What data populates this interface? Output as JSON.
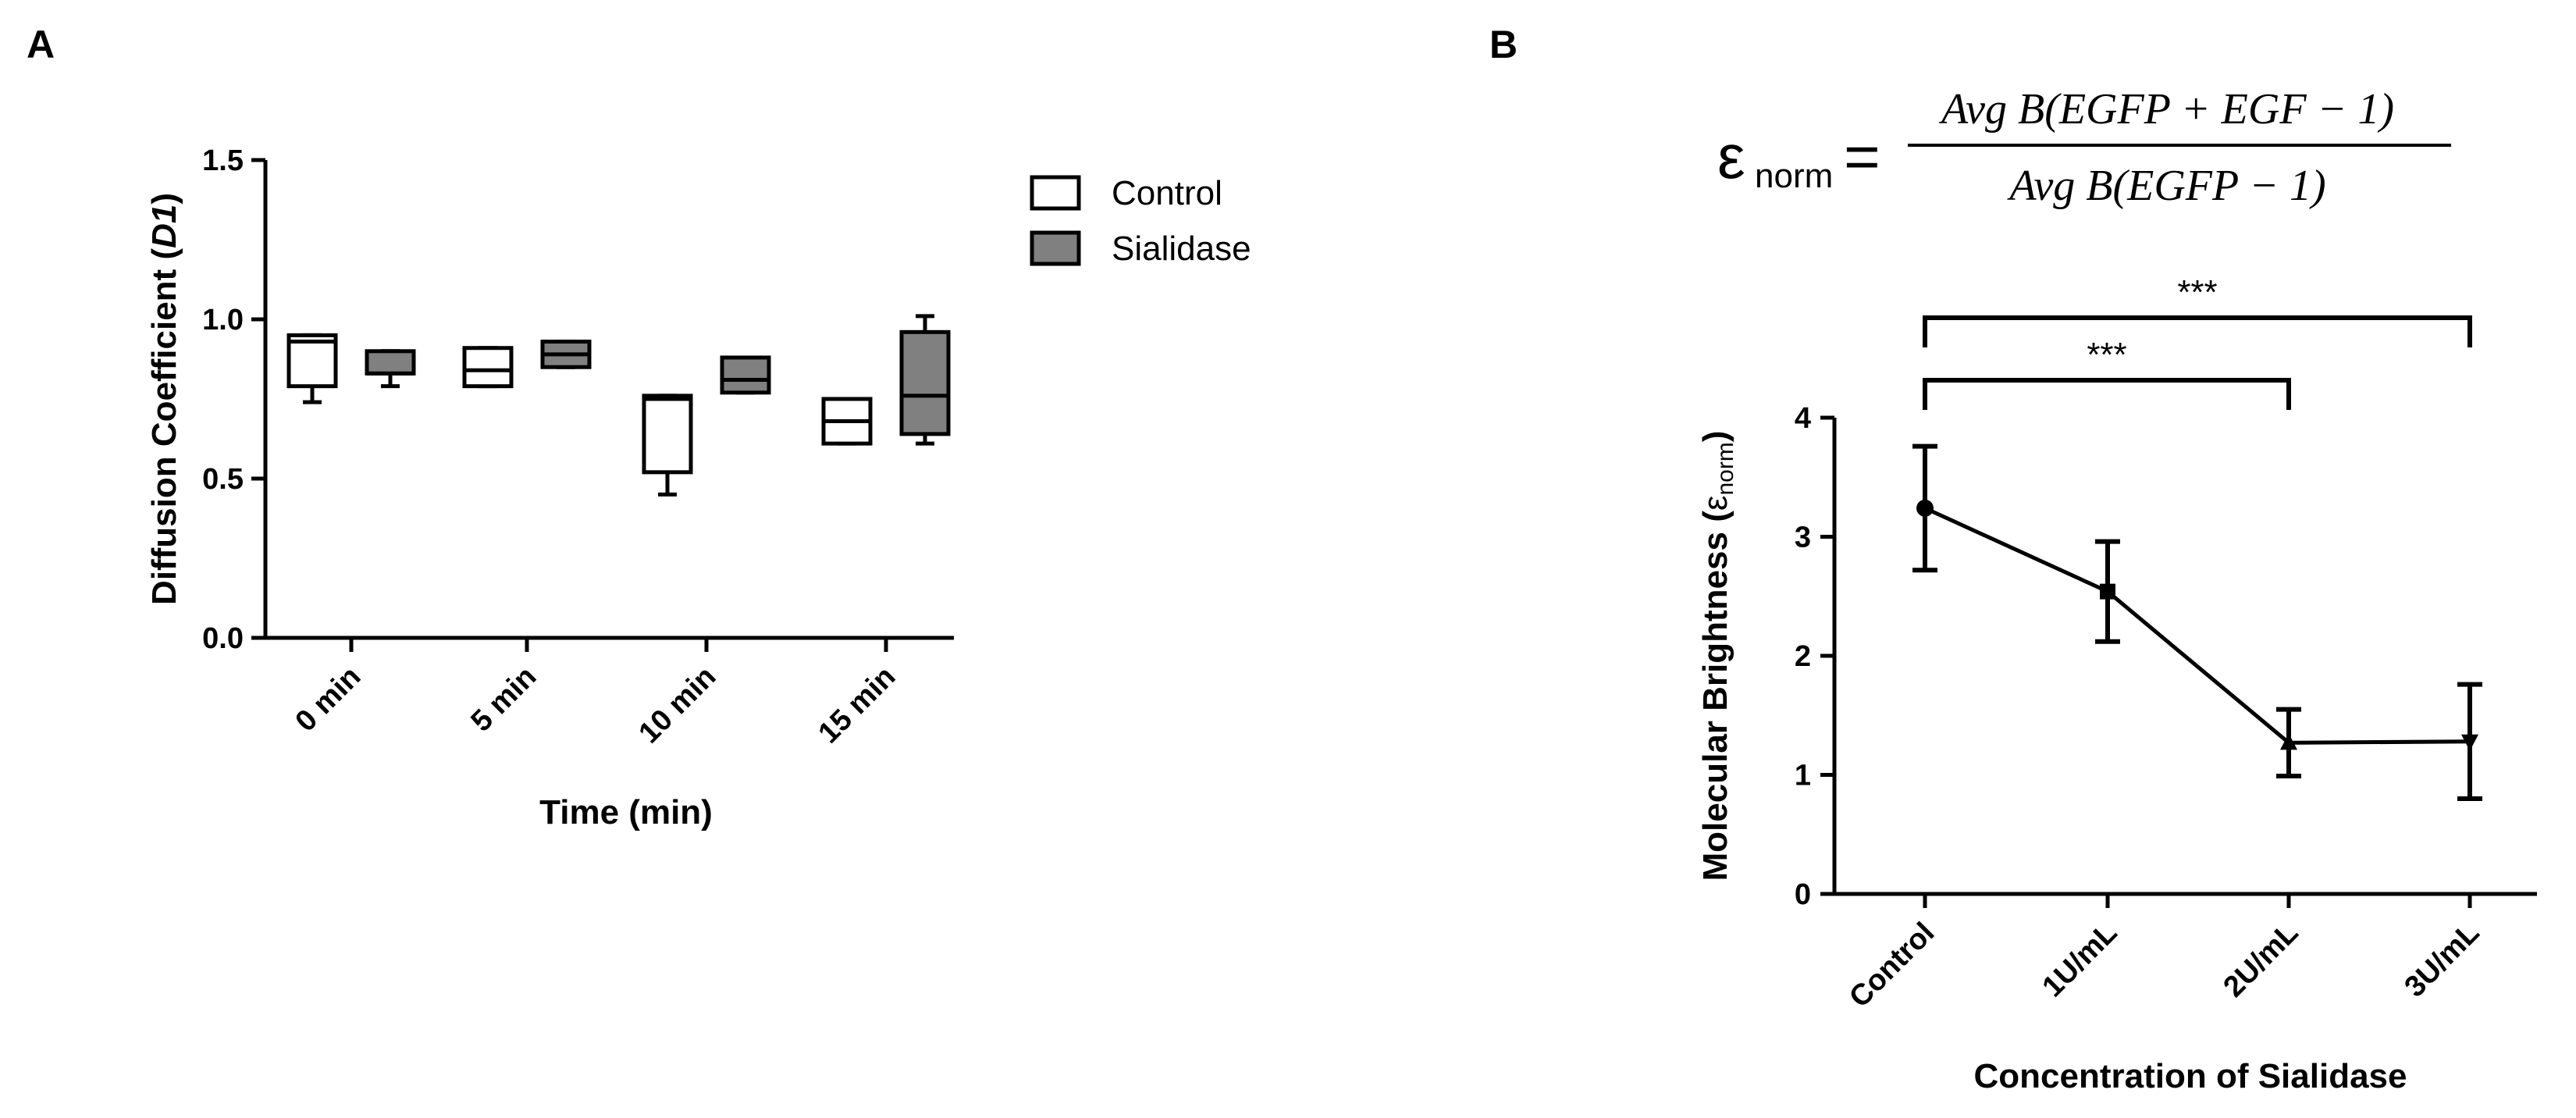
{
  "panel_labels": {
    "a": "A",
    "b": "B"
  },
  "colors": {
    "control_fill": "#ffffff",
    "sialidase_fill": "#808080",
    "stroke": "#000000"
  },
  "equation": {
    "lhs_symbol": "ε",
    "lhs_sub": "norm",
    "equals": "=",
    "numerator": "Avg B(EGFP + EGF − 1)",
    "denominator": "Avg B(EGFP − 1)"
  },
  "chart_data": [
    {
      "type": "box",
      "panel": "A",
      "xlabel": "Time (min)",
      "ylabel_main": "Diffusion Coefficient (",
      "ylabel_italic": "D1",
      "ylabel_end": ")",
      "ylim": [
        0,
        1.5
      ],
      "yticks": [
        "0.0",
        "0.5",
        "1.0",
        "1.5"
      ],
      "ytick_values": [
        0,
        0.5,
        1.0,
        1.5
      ],
      "categories": [
        "0 min",
        "5 min",
        "10 min",
        "15 min"
      ],
      "legend_position": "top-right",
      "series": [
        {
          "name": "Control",
          "boxes": [
            {
              "min": 0.74,
              "q1": 0.79,
              "median": 0.93,
              "q3": 0.95,
              "max": 0.95
            },
            {
              "min": 0.79,
              "q1": 0.79,
              "median": 0.84,
              "q3": 0.91,
              "max": 0.91
            },
            {
              "min": 0.45,
              "q1": 0.52,
              "median": 0.75,
              "q3": 0.76,
              "max": 0.76
            },
            {
              "min": 0.61,
              "q1": 0.61,
              "median": 0.68,
              "q3": 0.75,
              "max": 0.75
            }
          ]
        },
        {
          "name": "Sialidase",
          "boxes": [
            {
              "min": 0.79,
              "q1": 0.83,
              "median": 0.83,
              "q3": 0.9,
              "max": 0.9
            },
            {
              "min": 0.85,
              "q1": 0.85,
              "median": 0.89,
              "q3": 0.93,
              "max": 0.93
            },
            {
              "min": 0.77,
              "q1": 0.77,
              "median": 0.81,
              "q3": 0.88,
              "max": 0.88
            },
            {
              "min": 0.61,
              "q1": 0.64,
              "median": 0.76,
              "q3": 0.96,
              "max": 1.01
            }
          ]
        }
      ]
    },
    {
      "type": "line",
      "panel": "B",
      "xlabel": "Concentration of Sialidase",
      "ylabel_main": "Molecular Brightness (",
      "ylabel_sym": "ε",
      "ylabel_sub": "norm",
      "ylabel_end": ")",
      "ylim": [
        0,
        4
      ],
      "yticks": [
        "0",
        "1",
        "2",
        "3",
        "4"
      ],
      "ytick_values": [
        0,
        1,
        2,
        3,
        4
      ],
      "categories": [
        "Control",
        "1U/mL",
        "2U/mL",
        "3U/mL"
      ],
      "markers": [
        "circle",
        "square",
        "triangle-up",
        "triangle-down"
      ],
      "values": [
        3.24,
        2.54,
        1.27,
        1.28
      ],
      "error": [
        0.52,
        0.42,
        0.28,
        0.48
      ],
      "significance": [
        {
          "from": 0,
          "to": 3,
          "label": "***"
        },
        {
          "from": 0,
          "to": 2,
          "label": "***"
        }
      ]
    }
  ]
}
